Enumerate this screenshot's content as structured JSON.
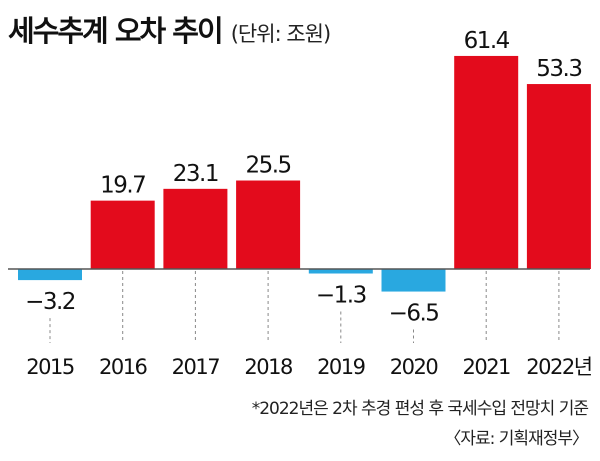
{
  "chart_data": {
    "type": "bar",
    "title": "세수추계 오차 추이",
    "unit_note": "(단위: 조원)",
    "categories": [
      "2015",
      "2016",
      "2017",
      "2018",
      "2019",
      "2020",
      "2021",
      "2022년"
    ],
    "values": [
      -3.2,
      19.7,
      23.1,
      25.5,
      -1.3,
      -6.5,
      61.4,
      53.3
    ],
    "value_labels": [
      "−3.2",
      "19.7",
      "23.1",
      "25.5",
      "−1.3",
      "−6.5",
      "61.4",
      "53.3"
    ],
    "ylim": [
      -10,
      65
    ],
    "grid": false,
    "colors": {
      "positive": "#e30b1c",
      "negative": "#29a8e0",
      "baseline": "#555555"
    }
  },
  "footnote": "*2022년은 2차 추경 편성 후 국세수입 전망치 기준",
  "source": "〈자료: 기획재정부〉"
}
